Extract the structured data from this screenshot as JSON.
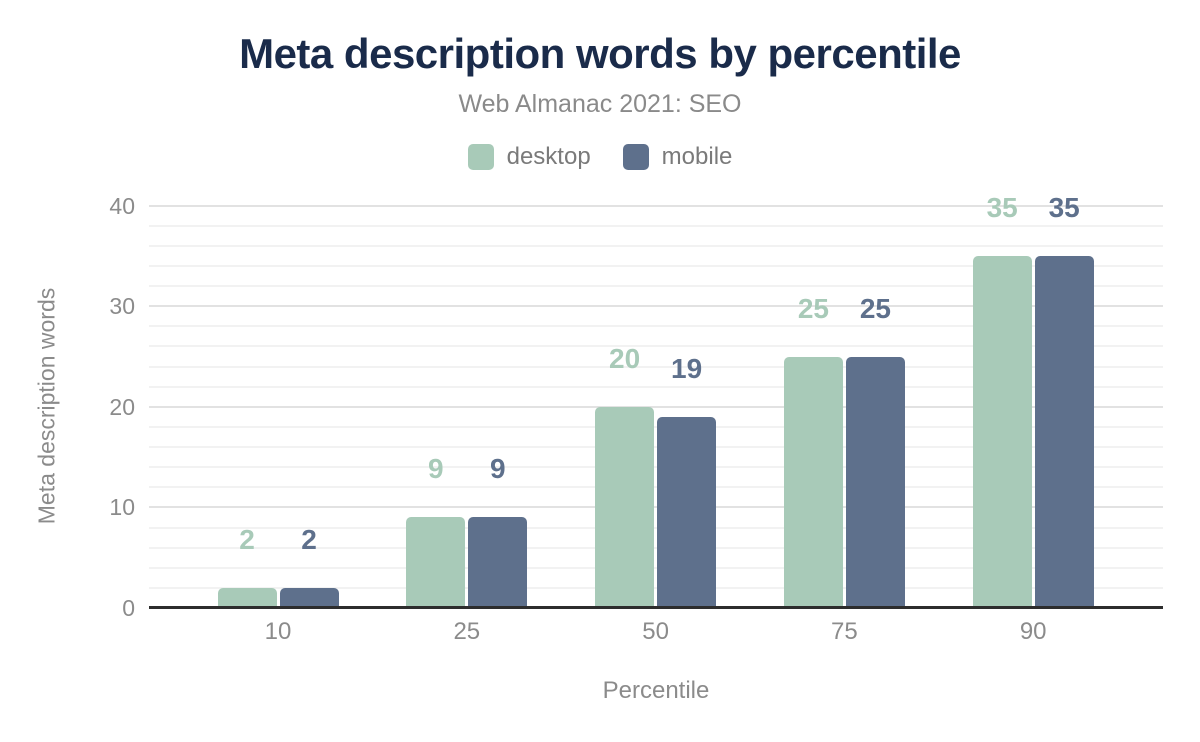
{
  "chart_data": {
    "type": "bar",
    "title": "Meta description words by percentile",
    "subtitle": "Web Almanac 2021: SEO",
    "xlabel": "Percentile",
    "ylabel": "Meta description words",
    "categories": [
      "10",
      "25",
      "50",
      "75",
      "90"
    ],
    "series": [
      {
        "name": "desktop",
        "color": "#a8cab8",
        "values": [
          2,
          9,
          20,
          25,
          35
        ]
      },
      {
        "name": "mobile",
        "color": "#5e708c",
        "values": [
          2,
          9,
          19,
          25,
          35
        ]
      }
    ],
    "ylim": [
      0,
      40
    ],
    "yticks": [
      0,
      10,
      20,
      30,
      40
    ],
    "minor_grid_step": 2,
    "major_grid_step": 10,
    "grid": "horizontal",
    "legend_position": "top",
    "data_labels": "above-bars"
  },
  "colors": {
    "title": "#1a2b4a",
    "subtitle": "#8a8a8a",
    "tick_label": "#8b8b8b",
    "axis_title": "#8b8b8b",
    "legend_text": "#7a7a7a",
    "axis_line": "#2d2d2d",
    "grid_major": "#e2e2e2",
    "grid_minor": "#f2f2f2",
    "background": "#ffffff"
  }
}
